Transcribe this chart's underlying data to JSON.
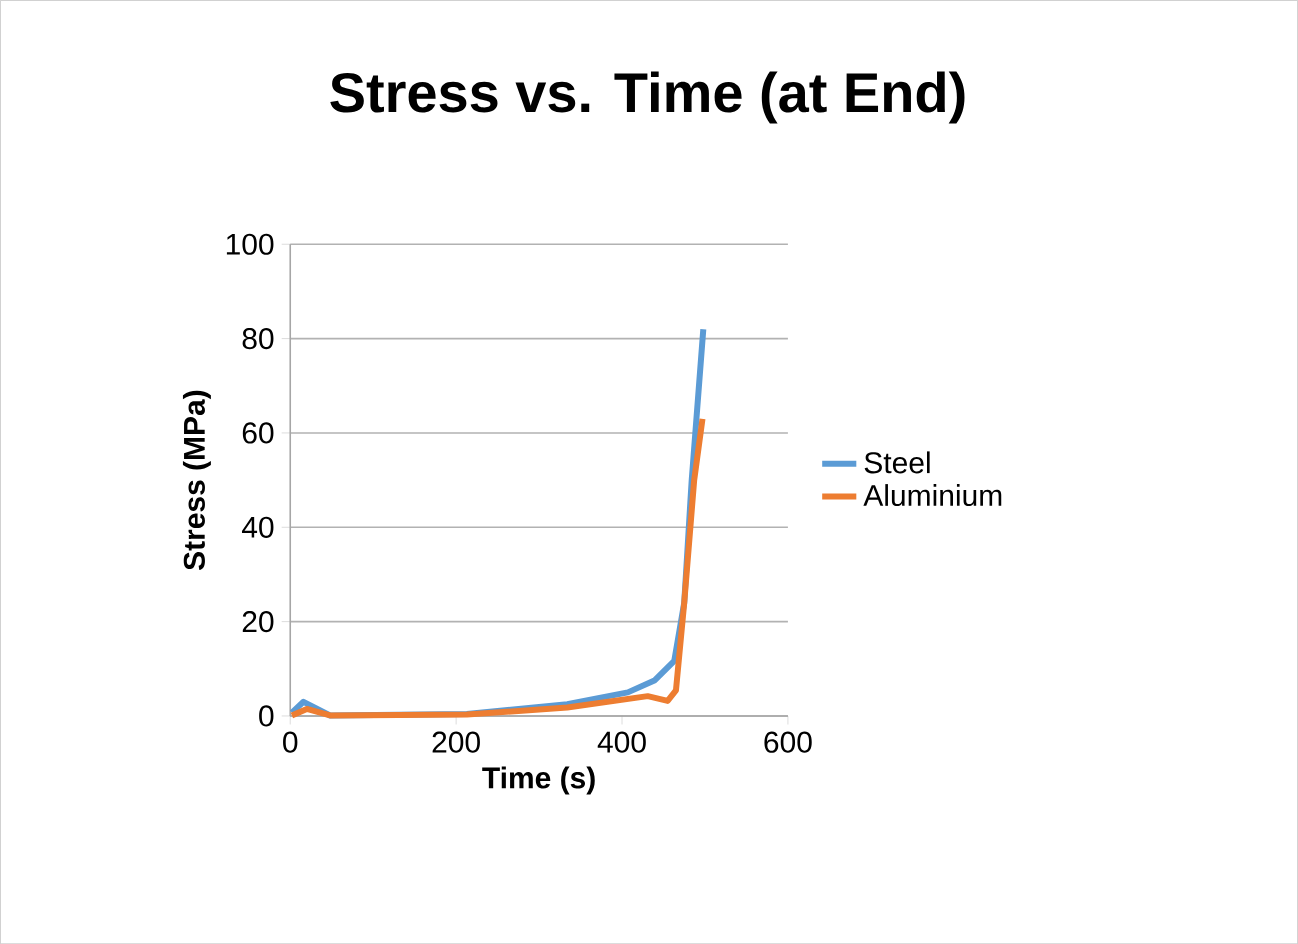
{
  "chart_data": {
    "type": "line",
    "title": "Stress  vs. Time (at End)",
    "xlabel": "Time (s)",
    "ylabel": "Stress (MPa)",
    "xlim": [
      0,
      600
    ],
    "xticks": [
      0,
      200,
      400,
      600
    ],
    "ylim": [
      0,
      100
    ],
    "yticks": [
      0,
      20,
      40,
      60,
      80,
      100
    ],
    "grid": "y",
    "legend": "right",
    "series": [
      {
        "name": "Steel",
        "color": "#5b9bd5",
        "x": [
          2,
          16,
          48,
          213,
          334,
          407,
          439,
          463,
          475,
          484,
          498
        ],
        "values": [
          0.7,
          3,
          0.1,
          0.4,
          2.5,
          5,
          7.5,
          11.7,
          24,
          50,
          82
        ]
      },
      {
        "name": "Aluminium",
        "color": "#ed7d31",
        "x": [
          2,
          20,
          48,
          213,
          334,
          431,
          455,
          465,
          475,
          487,
          497
        ],
        "values": [
          0.1,
          1.5,
          0.1,
          0.3,
          1.8,
          4.2,
          3.2,
          5.4,
          24,
          50,
          63
        ]
      }
    ]
  }
}
